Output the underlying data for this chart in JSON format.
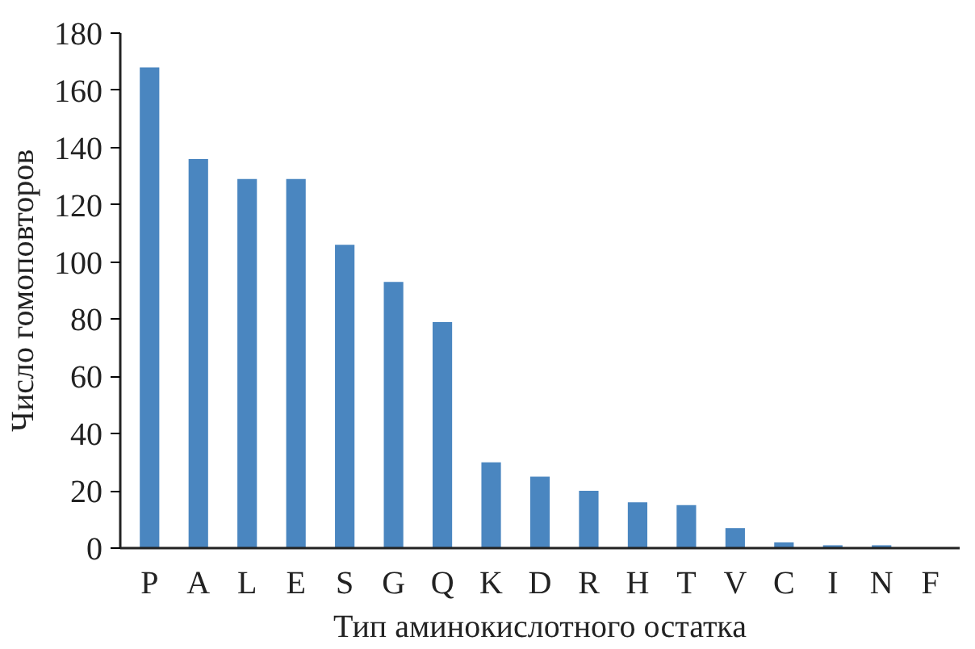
{
  "chart_data": {
    "type": "bar",
    "xlabel": "Тип аминокислотного остатка",
    "ylabel": "Число гомоповторов",
    "categories": [
      "P",
      "A",
      "L",
      "E",
      "S",
      "G",
      "Q",
      "K",
      "D",
      "R",
      "H",
      "T",
      "V",
      "C",
      "I",
      "N",
      "F"
    ],
    "values": [
      168,
      136,
      129,
      129,
      106,
      93,
      79,
      30,
      25,
      20,
      16,
      15,
      7,
      2,
      1,
      1,
      0
    ],
    "color": "#4a86c0",
    "ylim": [
      0,
      180
    ],
    "yticks": [
      0,
      20,
      40,
      60,
      80,
      100,
      120,
      140,
      160,
      180
    ],
    "grid": false
  }
}
